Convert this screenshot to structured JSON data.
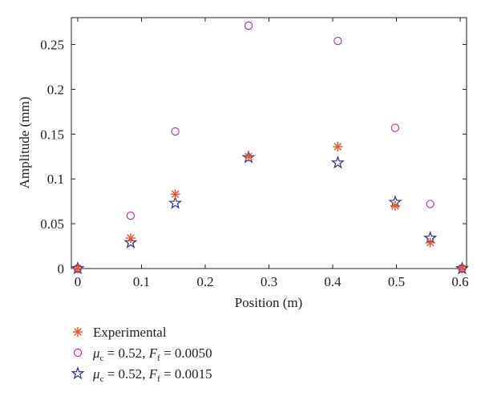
{
  "chart_data": {
    "type": "scatter",
    "xlabel": "Position (m)",
    "ylabel": "Amplitude (mm)",
    "xlim": [
      -0.01,
      0.61
    ],
    "ylim": [
      0,
      0.28
    ],
    "xticks": [
      "0",
      "0.1",
      "0.2",
      "0.3",
      "0.4",
      "0.5",
      "0.6"
    ],
    "xtick_values": [
      0,
      0.1,
      0.2,
      0.3,
      0.4,
      0.5,
      0.6
    ],
    "yticks": [
      "0",
      "0.05",
      "0.1",
      "0.15",
      "0.2",
      "0.25"
    ],
    "ytick_values": [
      0,
      0.05,
      0.1,
      0.15,
      0.2,
      0.25
    ],
    "grid": false,
    "legend_position": "bottom-left",
    "series": [
      {
        "name": "Experimental",
        "marker": "asterisk",
        "color": "#e4572e",
        "x": [
          0,
          0.083,
          0.153,
          0.268,
          0.408,
          0.498,
          0.553,
          0.603
        ],
        "y": [
          0,
          0.034,
          0.083,
          0.125,
          0.136,
          0.07,
          0.029,
          0
        ]
      },
      {
        "name": "μc = 0.52, Ff = 0.0050",
        "marker": "circle",
        "color": "#b43ba5",
        "x": [
          0,
          0.083,
          0.153,
          0.268,
          0.408,
          0.498,
          0.553,
          0.603
        ],
        "y": [
          0,
          0.059,
          0.153,
          0.271,
          0.254,
          0.157,
          0.072,
          0
        ]
      },
      {
        "name": "μc = 0.52, Ff = 0.0015",
        "marker": "star",
        "color": "#2b2f8f",
        "x": [
          0,
          0.083,
          0.153,
          0.268,
          0.408,
          0.498,
          0.553,
          0.603
        ],
        "y": [
          0,
          0.029,
          0.073,
          0.124,
          0.118,
          0.074,
          0.034,
          0
        ]
      }
    ]
  },
  "legend": {
    "items": [
      {
        "label": "Experimental"
      },
      {
        "mu_symbol": "μ",
        "mu_sub": "c",
        "mu_value": " = 0.52, ",
        "f_symbol": "F",
        "f_sub": "f",
        "f_value": " = 0.0050"
      },
      {
        "mu_symbol": "μ",
        "mu_sub": "c",
        "mu_value": " = 0.52, ",
        "f_symbol": "F",
        "f_sub": "f",
        "f_value": " = 0.0015"
      }
    ]
  }
}
